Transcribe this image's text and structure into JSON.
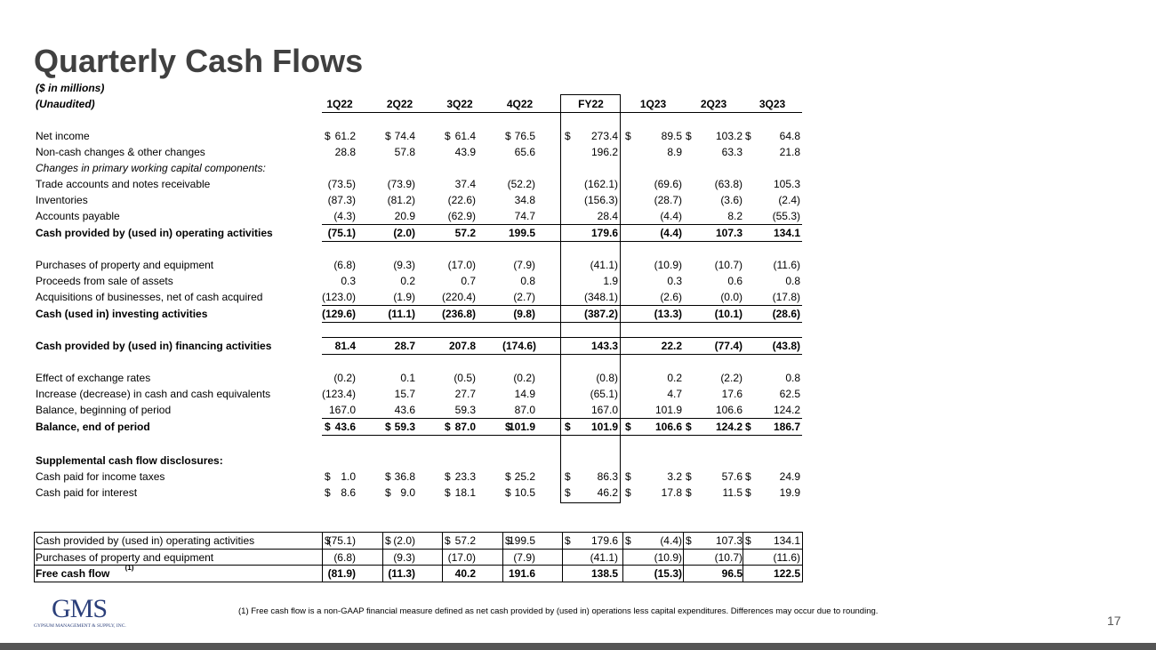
{
  "header": {
    "title": "Quarterly Cash Flows",
    "subtitle": "($ in millions)",
    "note": "(Unaudited)"
  },
  "table": {
    "columns": [
      "1Q22",
      "2Q22",
      "3Q22",
      "4Q22",
      "FY22",
      "1Q23",
      "2Q23",
      "3Q23"
    ],
    "rows": [
      {
        "label": "Net income",
        "currency": "$",
        "cells": [
          "61.2",
          "74.4",
          "61.4",
          "76.5",
          "273.4",
          "89.5",
          "103.2",
          "64.8"
        ]
      },
      {
        "label": "Non-cash changes & other changes",
        "cells": [
          "28.8",
          "57.8",
          "43.9",
          "65.6",
          "196.2",
          "8.9",
          "63.3",
          "21.8"
        ]
      },
      {
        "label": "Changes in primary working capital components:"
      },
      {
        "label": "Trade accounts and notes receivable",
        "cells": [
          "(73.5)",
          "(73.9)",
          "37.4",
          "(52.2)",
          "(162.1)",
          "(69.6)",
          "(63.8)",
          "105.3"
        ]
      },
      {
        "label": "Inventories",
        "cells": [
          "(87.3)",
          "(81.2)",
          "(22.6)",
          "34.8",
          "(156.3)",
          "(28.7)",
          "(3.6)",
          "(2.4)"
        ]
      },
      {
        "label": "Accounts payable",
        "cells": [
          "(4.3)",
          "20.9",
          "(62.9)",
          "74.7",
          "28.4",
          "(4.4)",
          "8.2",
          "(55.3)"
        ]
      },
      {
        "label": "Cash provided by (used in) operating activities",
        "cells": [
          "(75.1)",
          "(2.0)",
          "57.2",
          "199.5",
          "179.6",
          "(4.4)",
          "107.3",
          "134.1"
        ]
      },
      {
        "label": "Purchases of property and equipment",
        "cells": [
          "(6.8)",
          "(9.3)",
          "(17.0)",
          "(7.9)",
          "(41.1)",
          "(10.9)",
          "(10.7)",
          "(11.6)"
        ]
      },
      {
        "label": "Proceeds from sale of assets",
        "cells": [
          "0.3",
          "0.2",
          "0.7",
          "0.8",
          "1.9",
          "0.3",
          "0.6",
          "0.8"
        ]
      },
      {
        "label": "Acquisitions of businesses, net of cash acquired",
        "cells": [
          "(123.0)",
          "(1.9)",
          "(220.4)",
          "(2.7)",
          "(348.1)",
          "(2.6)",
          "(0.0)",
          "(17.8)"
        ]
      },
      {
        "label": "Cash (used in) investing activities",
        "cells": [
          "(129.6)",
          "(11.1)",
          "(236.8)",
          "(9.8)",
          "(387.2)",
          "(13.3)",
          "(10.1)",
          "(28.6)"
        ]
      },
      {
        "label": "Cash provided by (used in) financing activities",
        "cells": [
          "81.4",
          "28.7",
          "207.8",
          "(174.6)",
          "143.3",
          "22.2",
          "(77.4)",
          "(43.8)"
        ]
      },
      {
        "label": "Effect of exchange rates",
        "cells": [
          "(0.2)",
          "0.1",
          "(0.5)",
          "(0.2)",
          "(0.8)",
          "0.2",
          "(2.2)",
          "0.8"
        ]
      },
      {
        "label": "Increase (decrease) in cash and cash equivalents",
        "cells": [
          "(123.4)",
          "15.7",
          "27.7",
          "14.9",
          "(65.1)",
          "4.7",
          "17.6",
          "62.5"
        ]
      },
      {
        "label": "Balance, beginning of period",
        "cells": [
          "167.0",
          "43.6",
          "59.3",
          "87.0",
          "167.0",
          "101.9",
          "106.6",
          "124.2"
        ]
      },
      {
        "label": "Balance, end of period",
        "currency": "$",
        "cells": [
          "43.6",
          "59.3",
          "87.0",
          "101.9",
          "101.9",
          "106.6",
          "124.2",
          "186.7"
        ]
      },
      {
        "label": "Supplemental cash flow disclosures:"
      },
      {
        "label": "Cash paid for income taxes",
        "currency": "$",
        "cells": [
          "1.0",
          "36.8",
          "23.3",
          "25.2",
          "86.3",
          "3.2",
          "57.6",
          "24.9"
        ]
      },
      {
        "label": "Cash paid for interest",
        "currency": "$",
        "cells": [
          "8.6",
          "9.0",
          "18.1",
          "10.5",
          "46.2",
          "17.8",
          "11.5",
          "19.9"
        ]
      }
    ]
  },
  "fcf_table": {
    "rows": [
      {
        "label": "Cash provided by (used in) operating activities",
        "currency": "$",
        "cells": [
          "(75.1)",
          "(2.0)",
          "57.2",
          "199.5",
          "179.6",
          "(4.4)",
          "107.3",
          "134.1"
        ]
      },
      {
        "label": "Purchases of property and equipment",
        "cells": [
          "(6.8)",
          "(9.3)",
          "(17.0)",
          "(7.9)",
          "(41.1)",
          "(10.9)",
          "(10.7)",
          "(11.6)"
        ]
      },
      {
        "label": "Free cash flow",
        "label_note": "(1)",
        "cells": [
          "(81.9)",
          "(11.3)",
          "40.2",
          "191.6",
          "138.5",
          "(15.3)",
          "96.5",
          "122.5"
        ]
      }
    ]
  },
  "footnote": "(1)  Free cash flow is a non-GAAP financial measure defined as net cash provided by (used in) operations less capital expenditures. Differences may occur due to rounding.",
  "logo": {
    "name": "GMS",
    "tagline": "GYPSUM MANAGEMENT & SUPPLY, INC."
  },
  "page_number": "17"
}
